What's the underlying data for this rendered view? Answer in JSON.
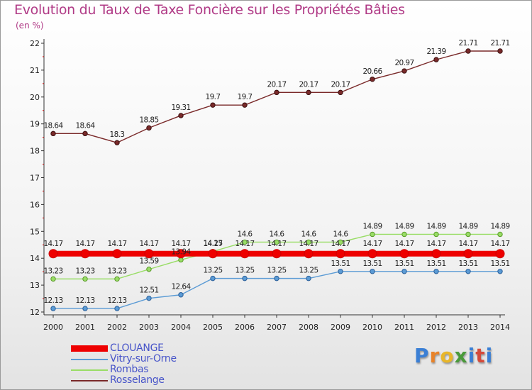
{
  "title": "Evolution du Taux de Taxe Foncière sur les Propriétés Bâties",
  "unit_label": "(en %)",
  "logo": {
    "text": "Proxiti",
    "letters": [
      "P",
      "r",
      "o",
      "x",
      "i",
      "t",
      "i"
    ],
    "colors": [
      "#3a7fd5",
      "#e8832a",
      "#e8b62a",
      "#4a9a3a",
      "#3a7fd5",
      "#d54a3a",
      "#3a7fd5"
    ]
  },
  "chart_data": {
    "type": "line",
    "title": "Evolution du Taux de Taxe Foncière sur les Propriétés Bâties",
    "ylabel": "(en %)",
    "xlabel": "",
    "ylim": [
      12,
      22
    ],
    "yticks": [
      12,
      13,
      14,
      15,
      16,
      17,
      18,
      19,
      20,
      21,
      22
    ],
    "categories": [
      "2000",
      "2001",
      "2002",
      "2003",
      "2004",
      "2005",
      "2006",
      "2007",
      "2008",
      "2009",
      "2010",
      "2011",
      "2012",
      "2013",
      "2014"
    ],
    "grid": false,
    "legend_position": "bottom-left",
    "series": [
      {
        "name": "CLOUANGE",
        "color": "#ee0000",
        "thick": true,
        "values": [
          14.17,
          14.17,
          14.17,
          14.17,
          14.17,
          14.17,
          14.17,
          14.17,
          14.17,
          14.17,
          14.17,
          14.17,
          14.17,
          14.17,
          14.17
        ],
        "labels": [
          "14.17",
          "14.17",
          "14.17",
          "14.17",
          "14.17",
          "14.17",
          "14.17",
          "14.17",
          "14.17",
          "14.17",
          "14.17",
          "14.17",
          "14.17",
          "14.17",
          "14.17"
        ]
      },
      {
        "name": "Vitry-sur-Orne",
        "color": "#5b9bd5",
        "thick": false,
        "values": [
          12.13,
          12.13,
          12.13,
          12.51,
          12.64,
          13.25,
          13.25,
          13.25,
          13.25,
          13.51,
          13.51,
          13.51,
          13.51,
          13.51,
          13.51
        ],
        "labels": [
          "12.13",
          "12.13",
          "12.13",
          "12.51",
          "12.64",
          "13.25",
          "13.25",
          "13.25",
          "13.25",
          "13.51",
          "13.51",
          "13.51",
          "13.51",
          "13.51",
          "13.51"
        ]
      },
      {
        "name": "Rombas",
        "color": "#99dd66",
        "thick": false,
        "values": [
          13.23,
          13.23,
          13.23,
          13.59,
          13.94,
          14.25,
          14.6,
          14.6,
          14.6,
          14.6,
          14.89,
          14.89,
          14.89,
          14.89,
          14.89
        ],
        "labels": [
          "13.23",
          "13.23",
          "13.23",
          "13.59",
          "13.94",
          "14.25",
          "14.6",
          "14.6",
          "14.6",
          "14.6",
          "14.89",
          "14.89",
          "14.89",
          "14.89",
          "14.89"
        ]
      },
      {
        "name": "Rosselange",
        "color": "#7a2a2a",
        "thick": false,
        "values": [
          18.64,
          18.64,
          18.3,
          18.85,
          19.31,
          19.7,
          19.7,
          20.17,
          20.17,
          20.17,
          20.66,
          20.97,
          21.39,
          21.71,
          21.71
        ],
        "labels": [
          "18.64",
          "18.64",
          "18.3",
          "18.85",
          "19.31",
          "19.7",
          "19.7",
          "20.17",
          "20.17",
          "20.17",
          "20.66",
          "20.97",
          "21.39",
          "21.71",
          "21.71"
        ]
      }
    ]
  }
}
